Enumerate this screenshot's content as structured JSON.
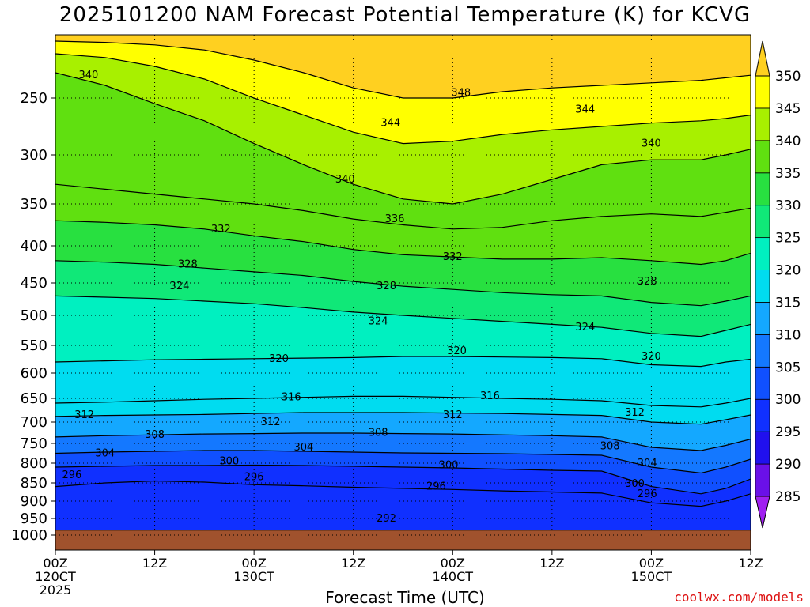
{
  "chart_data": {
    "type": "heatmap",
    "title": "2025101200 NAM Forecast Potential Temperature (K) for KCVG",
    "xlabel": "Forecast Time (UTC)",
    "ylabel": "",
    "x_ticks": [
      {
        "hour": 0,
        "label": [
          "00Z",
          "120CT",
          "2025"
        ]
      },
      {
        "hour": 12,
        "label": [
          "12Z"
        ]
      },
      {
        "hour": 24,
        "label": [
          "00Z",
          "130CT"
        ]
      },
      {
        "hour": 36,
        "label": [
          "12Z"
        ]
      },
      {
        "hour": 48,
        "label": [
          "00Z",
          "140CT"
        ]
      },
      {
        "hour": 60,
        "label": [
          "12Z"
        ]
      },
      {
        "hour": 72,
        "label": [
          "00Z",
          "150CT"
        ]
      },
      {
        "hour": 84,
        "label": [
          "12Z"
        ]
      }
    ],
    "xlim": [
      0,
      84
    ],
    "y_ticks": [
      250,
      300,
      350,
      400,
      450,
      500,
      550,
      600,
      650,
      700,
      750,
      800,
      850,
      900,
      950,
      1000
    ],
    "ylim": [
      1025,
      200
    ],
    "y_scale": "log-pressure",
    "grid": true,
    "colorbar": {
      "levels": [
        285,
        290,
        295,
        300,
        305,
        310,
        315,
        320,
        325,
        330,
        335,
        340,
        345,
        350
      ],
      "colors": [
        "#a020f0",
        "#6a10e8",
        "#2010ee",
        "#1030ff",
        "#1050ff",
        "#1478ff",
        "#14a8ff",
        "#00dcf0",
        "#00f0c0",
        "#10e878",
        "#28e040",
        "#60e010",
        "#a8f000",
        "#ffff00",
        "#ffd020"
      ]
    },
    "contour_interval": 2,
    "isentropes": [
      {
        "theta": 292,
        "pressure": [
          985,
          985,
          985,
          985,
          985,
          985,
          985,
          985,
          985,
          985,
          985,
          985,
          985,
          985,
          985,
          985
        ]
      },
      {
        "theta": 296,
        "pressure": [
          860,
          850,
          845,
          848,
          855,
          858,
          862,
          865,
          868,
          872,
          875,
          878,
          905,
          915,
          900,
          880
        ]
      },
      {
        "theta": 300,
        "pressure": [
          810,
          808,
          806,
          806,
          805,
          806,
          808,
          810,
          812,
          815,
          818,
          820,
          860,
          880,
          865,
          840
        ]
      },
      {
        "theta": 304,
        "pressure": [
          775,
          772,
          770,
          768,
          768,
          770,
          772,
          774,
          775,
          776,
          778,
          780,
          810,
          825,
          810,
          790
        ]
      },
      {
        "theta": 308,
        "pressure": [
          735,
          732,
          730,
          728,
          727,
          726,
          726,
          727,
          728,
          730,
          732,
          735,
          760,
          768,
          755,
          740
        ]
      },
      {
        "theta": 312,
        "pressure": [
          688,
          686,
          685,
          684,
          682,
          680,
          680,
          680,
          681,
          682,
          684,
          686,
          700,
          705,
          695,
          685
        ]
      },
      {
        "theta": 316,
        "pressure": [
          660,
          658,
          655,
          652,
          650,
          648,
          646,
          646,
          648,
          650,
          652,
          655,
          665,
          668,
          660,
          650
        ]
      },
      {
        "theta": 320,
        "pressure": [
          580,
          578,
          576,
          575,
          574,
          573,
          572,
          570,
          570,
          571,
          572,
          574,
          585,
          588,
          580,
          575
        ]
      },
      {
        "theta": 324,
        "pressure": [
          470,
          472,
          474,
          478,
          482,
          488,
          495,
          500,
          505,
          510,
          515,
          520,
          530,
          535,
          525,
          515
        ]
      },
      {
        "theta": 328,
        "pressure": [
          420,
          422,
          425,
          430,
          435,
          440,
          448,
          455,
          460,
          465,
          468,
          470,
          480,
          485,
          478,
          470
        ]
      },
      {
        "theta": 332,
        "pressure": [
          370,
          372,
          375,
          380,
          388,
          395,
          405,
          412,
          415,
          418,
          418,
          416,
          420,
          425,
          420,
          410
        ]
      },
      {
        "theta": 336,
        "pressure": [
          330,
          335,
          340,
          345,
          350,
          358,
          368,
          375,
          380,
          378,
          370,
          365,
          362,
          365,
          360,
          355
        ]
      },
      {
        "theta": 340,
        "pressure": [
          230,
          240,
          255,
          270,
          290,
          310,
          330,
          345,
          350,
          340,
          325,
          310,
          305,
          305,
          300,
          295
        ]
      },
      {
        "theta": 344,
        "pressure": [
          215,
          218,
          225,
          235,
          250,
          265,
          280,
          290,
          288,
          282,
          278,
          275,
          272,
          270,
          268,
          265
        ]
      },
      {
        "theta": 348,
        "pressure": [
          205,
          206,
          208,
          212,
          220,
          230,
          242,
          250,
          250,
          245,
          242,
          240,
          238,
          236,
          234,
          232
        ]
      }
    ],
    "contour_x_hours": [
      0,
      6,
      12,
      18,
      24,
      30,
      36,
      42,
      48,
      54,
      60,
      66,
      72,
      78,
      81,
      84
    ],
    "contour_labels": [
      {
        "text": "340",
        "hour": 4,
        "pressure": 232
      },
      {
        "text": "348",
        "hour": 49,
        "pressure": 246
      },
      {
        "text": "344",
        "hour": 40.5,
        "pressure": 272
      },
      {
        "text": "344",
        "hour": 64,
        "pressure": 260
      },
      {
        "text": "340",
        "hour": 35,
        "pressure": 325
      },
      {
        "text": "340",
        "hour": 72,
        "pressure": 290
      },
      {
        "text": "336",
        "hour": 41,
        "pressure": 368
      },
      {
        "text": "332",
        "hour": 20,
        "pressure": 380
      },
      {
        "text": "332",
        "hour": 48,
        "pressure": 415
      },
      {
        "text": "328",
        "hour": 16,
        "pressure": 425
      },
      {
        "text": "328",
        "hour": 40,
        "pressure": 455
      },
      {
        "text": "328",
        "hour": 71.5,
        "pressure": 448
      },
      {
        "text": "324",
        "hour": 15,
        "pressure": 455
      },
      {
        "text": "324",
        "hour": 39,
        "pressure": 510
      },
      {
        "text": "324",
        "hour": 64,
        "pressure": 520
      },
      {
        "text": "320",
        "hour": 27,
        "pressure": 574
      },
      {
        "text": "320",
        "hour": 48.5,
        "pressure": 560
      },
      {
        "text": "320",
        "hour": 72,
        "pressure": 570
      },
      {
        "text": "316",
        "hour": 28.5,
        "pressure": 648
      },
      {
        "text": "316",
        "hour": 52.5,
        "pressure": 645
      },
      {
        "text": "312",
        "hour": 3.5,
        "pressure": 685
      },
      {
        "text": "312",
        "hour": 26,
        "pressure": 700
      },
      {
        "text": "312",
        "hour": 48,
        "pressure": 685
      },
      {
        "text": "312",
        "hour": 70,
        "pressure": 680
      },
      {
        "text": "308",
        "hour": 12,
        "pressure": 730
      },
      {
        "text": "308",
        "hour": 39,
        "pressure": 725
      },
      {
        "text": "308",
        "hour": 67,
        "pressure": 757
      },
      {
        "text": "304",
        "hour": 6,
        "pressure": 775
      },
      {
        "text": "304",
        "hour": 30,
        "pressure": 760
      },
      {
        "text": "304",
        "hour": 71.5,
        "pressure": 800
      },
      {
        "text": "300",
        "hour": 21,
        "pressure": 795
      },
      {
        "text": "300",
        "hour": 47.5,
        "pressure": 805
      },
      {
        "text": "300",
        "hour": 70,
        "pressure": 852
      },
      {
        "text": "296",
        "hour": 2,
        "pressure": 830
      },
      {
        "text": "296",
        "hour": 24,
        "pressure": 835
      },
      {
        "text": "296",
        "hour": 46,
        "pressure": 860
      },
      {
        "text": "296",
        "hour": 71.5,
        "pressure": 880
      },
      {
        "text": "292",
        "hour": 40,
        "pressure": 950
      }
    ]
  },
  "credit": "coolwx.com/models"
}
